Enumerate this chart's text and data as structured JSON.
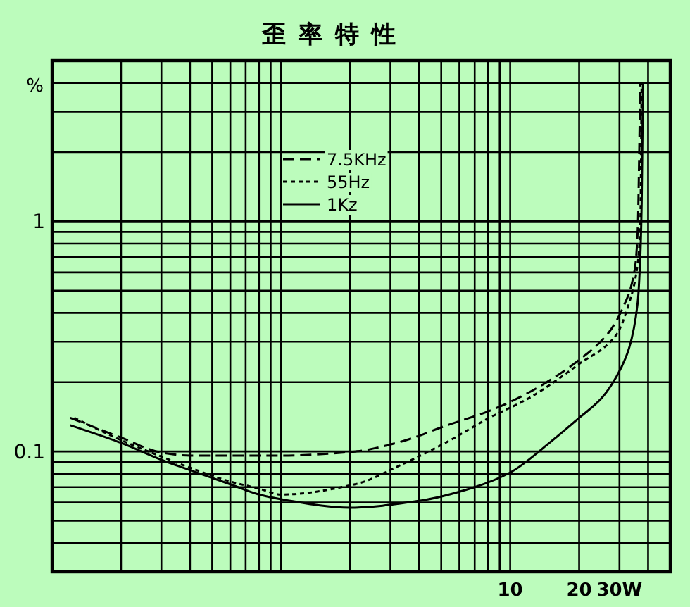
{
  "chart_data": {
    "type": "line",
    "title": "歪率特性",
    "ylabel": "%",
    "log": "xy",
    "grid": true,
    "legend": "top",
    "xlim": [
      0.1,
      50
    ],
    "ylim": [
      0.03,
      5
    ],
    "xticks": [
      {
        "value": 0.2,
        "label": null
      },
      {
        "value": 0.3,
        "label": null
      },
      {
        "value": 0.4,
        "label": null
      },
      {
        "value": 0.5,
        "label": null
      },
      {
        "value": 0.6,
        "label": null
      },
      {
        "value": 0.7,
        "label": null
      },
      {
        "value": 0.8,
        "label": null
      },
      {
        "value": 0.9,
        "label": null
      },
      {
        "value": 1,
        "label": null
      },
      {
        "value": 2,
        "label": null
      },
      {
        "value": 3,
        "label": null
      },
      {
        "value": 4,
        "label": null
      },
      {
        "value": 5,
        "label": null
      },
      {
        "value": 6,
        "label": null
      },
      {
        "value": 7,
        "label": null
      },
      {
        "value": 8,
        "label": null
      },
      {
        "value": 9,
        "label": null
      },
      10,
      20,
      {
        "value": 30,
        "label": "30W"
      },
      {
        "value": 40,
        "label": null
      }
    ],
    "yticks": [
      {
        "value": 0.04,
        "label": null
      },
      {
        "value": 0.05,
        "label": null
      },
      {
        "value": 0.06,
        "label": null
      },
      {
        "value": 0.07,
        "label": null
      },
      {
        "value": 0.08,
        "label": null
      },
      {
        "value": 0.09,
        "label": null
      },
      0.1,
      {
        "value": 0.2,
        "label": null
      },
      {
        "value": 0.3,
        "label": null
      },
      {
        "value": 0.4,
        "label": null
      },
      {
        "value": 0.5,
        "label": null
      },
      {
        "value": 0.6,
        "label": null
      },
      {
        "value": 0.7,
        "label": null
      },
      {
        "value": 0.8,
        "label": null
      },
      {
        "value": 0.9,
        "label": null
      },
      1,
      {
        "value": 2,
        "label": null
      },
      {
        "value": 3,
        "label": null
      },
      {
        "value": 4,
        "label": null
      }
    ],
    "series": [
      {
        "name": "7.5KHz",
        "color": "#000000",
        "line_style": "dashed",
        "x": [
          0.12,
          0.2,
          0.3,
          0.4,
          0.6,
          1,
          2.1,
          3.3,
          5.3,
          8.1,
          12,
          20,
          27,
          31,
          35,
          36,
          37
        ],
        "values": [
          0.14,
          0.115,
          0.099,
          0.096,
          0.096,
          0.096,
          0.1,
          0.11,
          0.13,
          0.15,
          0.18,
          0.25,
          0.33,
          0.42,
          0.62,
          0.89,
          4.0
        ]
      },
      {
        "name": "55Hz",
        "color": "#000000",
        "line_style": "dotted",
        "x": [
          0.125,
          0.2,
          0.3,
          0.4,
          0.6,
          0.8,
          1,
          2.1,
          3.3,
          5.3,
          8.1,
          12,
          20,
          29,
          33,
          36,
          37,
          37.5
        ],
        "values": [
          0.14,
          0.112,
          0.095,
          0.085,
          0.074,
          0.069,
          0.065,
          0.072,
          0.087,
          0.11,
          0.14,
          0.17,
          0.24,
          0.32,
          0.44,
          0.65,
          0.99,
          4.0
        ]
      },
      {
        "name": "1Kz",
        "color": "#000000",
        "line_style": "solid",
        "x": [
          0.12,
          0.2,
          0.3,
          0.4,
          0.6,
          0.8,
          1,
          2,
          4,
          7,
          10,
          15,
          20,
          25,
          29,
          33,
          36,
          37,
          37.5,
          38
        ],
        "values": [
          0.13,
          0.109,
          0.092,
          0.083,
          0.072,
          0.065,
          0.062,
          0.057,
          0.061,
          0.07,
          0.081,
          0.11,
          0.14,
          0.17,
          0.21,
          0.28,
          0.44,
          0.71,
          1.2,
          4.0
        ]
      }
    ]
  }
}
